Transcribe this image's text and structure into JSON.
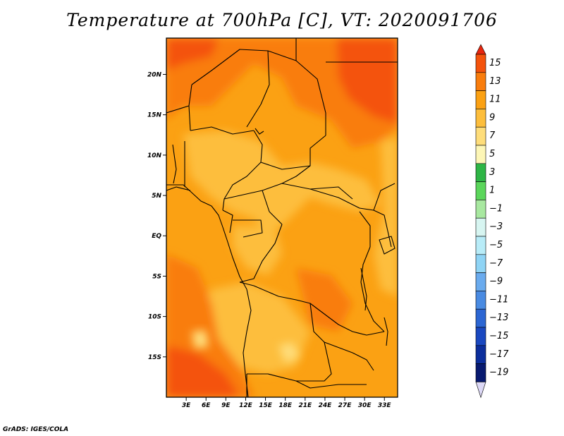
{
  "title": "Temperature at 700hPa [C], VT: 2020091706",
  "credit": "GrADS: IGES/COLA",
  "map": {
    "lon_range": [
      0,
      35
    ],
    "lat_range": [
      -20,
      24.5
    ],
    "x_ticks": [
      "3E",
      "6E",
      "9E",
      "12E",
      "15E",
      "18E",
      "21E",
      "24E",
      "27E",
      "30E",
      "33E"
    ],
    "x_tick_values": [
      3,
      6,
      9,
      12,
      15,
      18,
      21,
      24,
      27,
      30,
      33
    ],
    "y_ticks": [
      "20N",
      "15N",
      "10N",
      "5N",
      "EQ",
      "5S",
      "10S",
      "15S"
    ],
    "y_tick_values": [
      20,
      15,
      10,
      5,
      0,
      -5,
      -10,
      -15
    ]
  },
  "colorbar": {
    "labels": [
      "15",
      "13",
      "11",
      "9",
      "7",
      "5",
      "3",
      "1",
      "−1",
      "−3",
      "−5",
      "−7",
      "−9",
      "−11",
      "−13",
      "−15",
      "−17",
      "−19"
    ],
    "colors": [
      "#e8260e",
      "#f4530c",
      "#f97d0d",
      "#fba113",
      "#fdbe3c",
      "#fedd7a",
      "#fdf6b6",
      "#2eb546",
      "#5bd65b",
      "#a8e8a0",
      "#d7f5f1",
      "#b8ecf8",
      "#8fd4f5",
      "#6aabee",
      "#4a8be2",
      "#2c66d3",
      "#1a48c0",
      "#0c2e9c",
      "#081a70"
    ],
    "arrow_bottom_color": "#dcd8f6"
  }
}
